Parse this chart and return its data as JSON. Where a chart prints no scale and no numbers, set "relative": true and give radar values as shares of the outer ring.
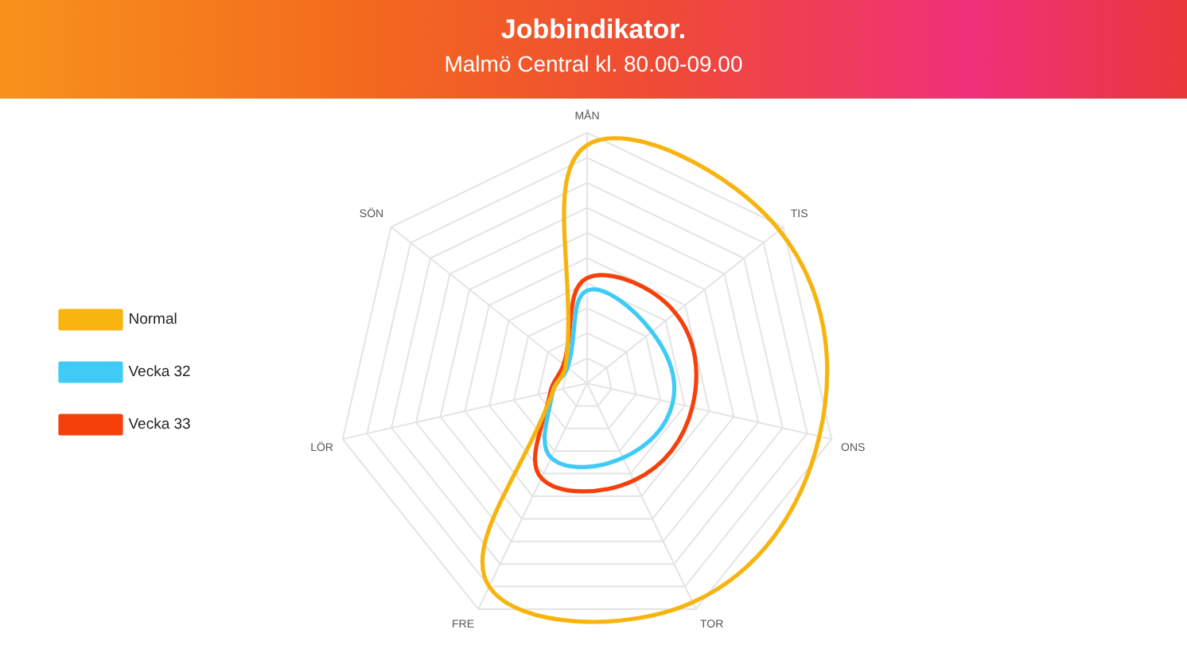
{
  "chart_data": {
    "type": "radar",
    "title": "Jobbindikator.",
    "subtitle": "Malmö Central kl. 80.00-09.00",
    "categories": [
      "MÅN",
      "TIS",
      "ONS",
      "TOR",
      "FRE",
      "LÖR",
      "SÖN"
    ],
    "relative": true,
    "series": [
      {
        "name": "Normal",
        "color": "#f8b40e",
        "values": [
          0.95,
          0.98,
          0.95,
          0.97,
          0.9,
          0.14,
          0.11
        ]
      },
      {
        "name": "Vecka 32",
        "color": "#3fcbf5",
        "values": [
          0.37,
          0.33,
          0.35,
          0.33,
          0.33,
          0.14,
          0.1
        ]
      },
      {
        "name": "Vecka 33",
        "color": "#f5400c",
        "values": [
          0.42,
          0.45,
          0.43,
          0.43,
          0.42,
          0.15,
          0.12
        ]
      }
    ],
    "grid": true,
    "legend": "left",
    "marker": "none"
  }
}
